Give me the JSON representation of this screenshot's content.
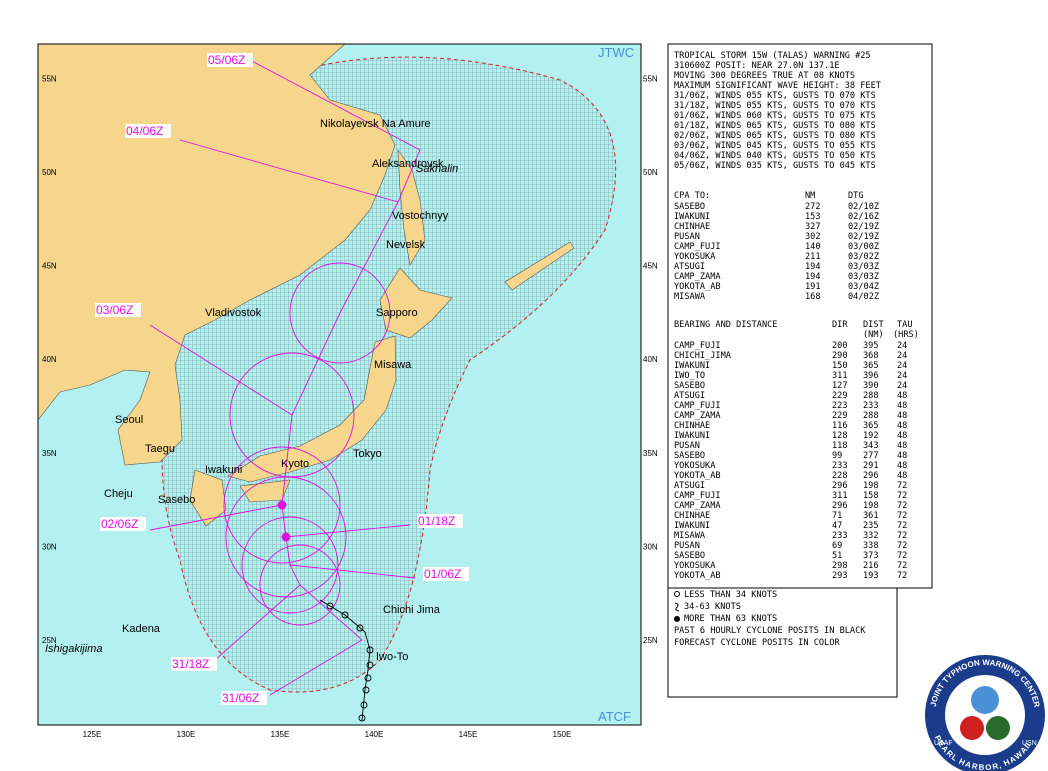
{
  "map": {
    "agency_top": "JTWC",
    "agency_bottom": "ATCF",
    "lon_labels": [
      "125E",
      "130E",
      "135E",
      "140E",
      "145E",
      "150E"
    ],
    "lat_labels": [
      "25N",
      "30N",
      "35N",
      "40N",
      "45N",
      "50N",
      "55N"
    ],
    "places": [
      "Nikolayevsk Na Amure",
      "Aleksandrovsk",
      "Sakhalin",
      "Vostochnyy",
      "Nevelsk",
      "Sapporo",
      "Vladivostok",
      "Misawa",
      "Seoul",
      "Taegu",
      "Kyoto",
      "Tokyo",
      "Iwakuni",
      "Cheju",
      "Sasebo",
      "Chichi Jima",
      "Kadena",
      "Ishigakijima",
      "Iwo-To"
    ],
    "track_labels": [
      "05/06Z",
      "04/06Z",
      "03/06Z",
      "02/06Z",
      "01/18Z",
      "01/06Z",
      "31/18Z",
      "31/06Z"
    ]
  },
  "warning": {
    "lines": [
      "TROPICAL STORM 15W (TALAS) WARNING #25",
      "310600Z POSIT: NEAR 27.0N 137.1E",
      "MOVING 300 DEGREES TRUE AT 08 KNOTS",
      "MAXIMUM SIGNIFICANT WAVE HEIGHT: 38 FEET",
      "31/06Z, WINDS 055 KTS, GUSTS TO 070 KTS",
      "31/18Z, WINDS 055 KTS, GUSTS TO 070 KTS",
      "01/06Z, WINDS 060 KTS, GUSTS TO 075 KTS",
      "01/18Z, WINDS 065 KTS, GUSTS TO 080 KTS",
      "02/06Z, WINDS 065 KTS, GUSTS TO 080 KTS",
      "03/06Z, WINDS 045 KTS, GUSTS TO 055 KTS",
      "04/06Z, WINDS 040 KTS, GUSTS TO 050 KTS",
      "05/06Z, WINDS 035 KTS, GUSTS TO 045 KTS"
    ]
  },
  "cpa": {
    "header": [
      "CPA TO:",
      "NM",
      "DTG"
    ],
    "rows": [
      [
        "SASEBO",
        272,
        "02/10Z"
      ],
      [
        "IWAKUNI",
        153,
        "02/16Z"
      ],
      [
        "CHINHAE",
        327,
        "02/19Z"
      ],
      [
        "PUSAN",
        302,
        "02/19Z"
      ],
      [
        "CAMP_FUJI",
        140,
        "03/00Z"
      ],
      [
        "YOKOSUKA",
        211,
        "03/02Z"
      ],
      [
        "ATSUGI",
        194,
        "03/03Z"
      ],
      [
        "CAMP_ZAMA",
        194,
        "03/03Z"
      ],
      [
        "YOKOTA_AB",
        191,
        "03/04Z"
      ],
      [
        "MISAWA",
        168,
        "04/02Z"
      ]
    ]
  },
  "bearing": {
    "header": [
      "BEARING AND DISTANCE",
      "DIR",
      "DIST",
      "TAU"
    ],
    "subheader": [
      "(NM)",
      "(HRS)"
    ],
    "rows": [
      [
        "CAMP_FUJI",
        200,
        395,
        24
      ],
      [
        "CHICHI_JIMA",
        290,
        368,
        24
      ],
      [
        "IWAKUNI",
        150,
        365,
        24
      ],
      [
        "IWO_TO",
        311,
        396,
        24
      ],
      [
        "SASEBO",
        127,
        390,
        24
      ],
      [
        "ATSUGI",
        229,
        288,
        48
      ],
      [
        "CAMP_FUJI",
        223,
        233,
        48
      ],
      [
        "CAMP_ZAMA",
        229,
        288,
        48
      ],
      [
        "CHINHAE",
        116,
        365,
        48
      ],
      [
        "IWAKUNI",
        128,
        192,
        48
      ],
      [
        "PUSAN",
        118,
        343,
        48
      ],
      [
        "SASEBO",
        99,
        277,
        48
      ],
      [
        "YOKOSUKA",
        233,
        291,
        48
      ],
      [
        "YOKOTA_AB",
        228,
        296,
        48
      ],
      [
        "ATSUGI",
        296,
        198,
        72
      ],
      [
        "CAMP_FUJI",
        311,
        158,
        72
      ],
      [
        "CAMP_ZAMA",
        296,
        198,
        72
      ],
      [
        "CHINHAE",
        71,
        361,
        72
      ],
      [
        "IWAKUNI",
        47,
        235,
        72
      ],
      [
        "MISAWA",
        233,
        332,
        72
      ],
      [
        "PUSAN",
        69,
        338,
        72
      ],
      [
        "SASEBO",
        51,
        373,
        72
      ],
      [
        "YOKOSUKA",
        298,
        216,
        72
      ],
      [
        "YOKOTA_AB",
        293,
        193,
        72
      ]
    ]
  },
  "legend": {
    "lines": [
      "LESS THAN 34 KNOTS",
      "34-63 KNOTS",
      "MORE THAN 63 KNOTS",
      "PAST 6 HOURLY CYCLONE POSITS IN BLACK",
      "FORECAST CYCLONE POSITS IN COLOR"
    ]
  },
  "seal": {
    "top": "JOINT TYPHOON WARNING CENTER",
    "bottom": "PEARL HARBOR, HAWAII",
    "left": "USAF",
    "right": "USN"
  }
}
